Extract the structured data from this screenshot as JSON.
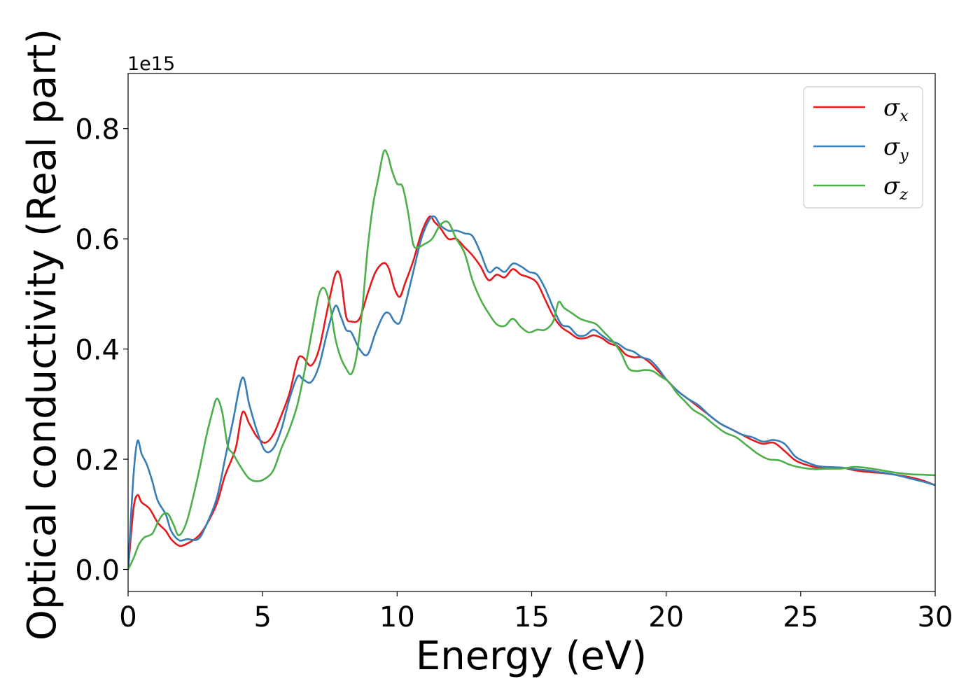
{
  "chart_data": {
    "type": "line",
    "xlabel": "Energy (eV)",
    "ylabel": "Optical conductivity (Real part)",
    "y_offset_label": "1e15",
    "xlim": [
      0,
      30
    ],
    "ylim": [
      -0.04,
      0.9
    ],
    "xticks": [
      0,
      5,
      10,
      15,
      20,
      25,
      30
    ],
    "xtick_labels": [
      "0",
      "5",
      "10",
      "15",
      "20",
      "25",
      "30"
    ],
    "yticks": [
      0.0,
      0.2,
      0.4,
      0.6,
      0.8
    ],
    "ytick_labels": [
      "0.0",
      "0.2",
      "0.4",
      "0.6",
      "0.8"
    ],
    "grid": false,
    "legend_position": "top-right",
    "series": [
      {
        "name": "σ_x",
        "legend_base": "σ",
        "legend_sub": "x",
        "color": "#e41a1c",
        "x": [
          0,
          0.2,
          0.35,
          0.5,
          0.8,
          1.1,
          1.4,
          1.6,
          1.9,
          2.2,
          2.6,
          2.9,
          3.3,
          3.6,
          4.0,
          4.25,
          4.5,
          4.8,
          5.1,
          5.4,
          5.7,
          6.0,
          6.3,
          6.5,
          6.8,
          7.1,
          7.4,
          7.7,
          7.9,
          8.1,
          8.3,
          8.6,
          8.9,
          9.2,
          9.5,
          9.7,
          9.9,
          10.1,
          10.3,
          10.6,
          10.9,
          11.2,
          11.4,
          11.6,
          11.9,
          12.2,
          12.5,
          12.8,
          13.1,
          13.4,
          13.7,
          14.0,
          14.3,
          14.6,
          14.9,
          15.2,
          15.5,
          15.8,
          16.1,
          16.4,
          16.7,
          17.0,
          17.3,
          17.6,
          17.9,
          18.2,
          18.5,
          18.8,
          19.1,
          19.4,
          19.7,
          20.0,
          20.4,
          20.8,
          21.2,
          21.6,
          22.0,
          22.4,
          22.8,
          23.2,
          23.6,
          24.0,
          24.4,
          24.8,
          25.2,
          25.6,
          26.0,
          26.5,
          27.0,
          27.5,
          28.0,
          28.5,
          29.0,
          29.5,
          30.0
        ],
        "y": [
          0,
          0.11,
          0.135,
          0.122,
          0.11,
          0.085,
          0.07,
          0.055,
          0.043,
          0.047,
          0.06,
          0.08,
          0.12,
          0.17,
          0.22,
          0.285,
          0.265,
          0.24,
          0.23,
          0.245,
          0.28,
          0.32,
          0.38,
          0.385,
          0.37,
          0.4,
          0.47,
          0.535,
          0.53,
          0.46,
          0.45,
          0.455,
          0.5,
          0.54,
          0.556,
          0.545,
          0.51,
          0.495,
          0.52,
          0.56,
          0.61,
          0.64,
          0.63,
          0.62,
          0.6,
          0.6,
          0.585,
          0.57,
          0.55,
          0.525,
          0.535,
          0.53,
          0.545,
          0.535,
          0.53,
          0.52,
          0.49,
          0.46,
          0.44,
          0.43,
          0.42,
          0.42,
          0.425,
          0.42,
          0.41,
          0.405,
          0.39,
          0.385,
          0.385,
          0.375,
          0.36,
          0.345,
          0.325,
          0.31,
          0.295,
          0.28,
          0.265,
          0.255,
          0.245,
          0.235,
          0.228,
          0.23,
          0.215,
          0.198,
          0.19,
          0.185,
          0.183,
          0.185,
          0.18,
          0.177,
          0.175,
          0.172,
          0.168,
          0.162,
          0.153
        ]
      },
      {
        "name": "σ_y",
        "legend_base": "σ",
        "legend_sub": "y",
        "color": "#377eb8",
        "x": [
          0,
          0.2,
          0.35,
          0.5,
          0.7,
          0.9,
          1.1,
          1.4,
          1.6,
          1.9,
          2.2,
          2.6,
          2.9,
          3.3,
          3.6,
          3.9,
          4.25,
          4.5,
          4.8,
          5.1,
          5.4,
          5.7,
          6.0,
          6.3,
          6.5,
          6.8,
          7.1,
          7.4,
          7.7,
          7.9,
          8.1,
          8.3,
          8.6,
          8.9,
          9.2,
          9.5,
          9.7,
          9.9,
          10.1,
          10.3,
          10.6,
          10.9,
          11.2,
          11.4,
          11.6,
          11.9,
          12.2,
          12.5,
          12.8,
          13.1,
          13.4,
          13.7,
          14.0,
          14.3,
          14.6,
          14.9,
          15.2,
          15.5,
          15.8,
          16.1,
          16.4,
          16.7,
          17.0,
          17.3,
          17.6,
          17.9,
          18.2,
          18.5,
          18.8,
          19.1,
          19.4,
          19.7,
          20.0,
          20.4,
          20.8,
          21.2,
          21.6,
          22.0,
          22.4,
          22.8,
          23.2,
          23.6,
          24.0,
          24.4,
          24.8,
          25.2,
          25.6,
          26.0,
          26.5,
          27.0,
          27.5,
          28.0,
          28.5,
          29.0,
          29.5,
          30.0
        ],
        "y": [
          0,
          0.17,
          0.233,
          0.21,
          0.19,
          0.16,
          0.125,
          0.1,
          0.07,
          0.053,
          0.055,
          0.055,
          0.08,
          0.13,
          0.2,
          0.27,
          0.348,
          0.3,
          0.25,
          0.215,
          0.22,
          0.255,
          0.31,
          0.35,
          0.345,
          0.34,
          0.37,
          0.43,
          0.478,
          0.46,
          0.435,
          0.43,
          0.4,
          0.39,
          0.43,
          0.462,
          0.465,
          0.45,
          0.448,
          0.48,
          0.54,
          0.6,
          0.635,
          0.64,
          0.625,
          0.615,
          0.615,
          0.61,
          0.605,
          0.575,
          0.54,
          0.548,
          0.54,
          0.555,
          0.55,
          0.54,
          0.535,
          0.51,
          0.475,
          0.445,
          0.44,
          0.425,
          0.425,
          0.435,
          0.425,
          0.415,
          0.41,
          0.4,
          0.395,
          0.385,
          0.38,
          0.365,
          0.345,
          0.325,
          0.31,
          0.298,
          0.28,
          0.265,
          0.255,
          0.245,
          0.24,
          0.232,
          0.235,
          0.228,
          0.205,
          0.195,
          0.188,
          0.186,
          0.185,
          0.182,
          0.18,
          0.176,
          0.172,
          0.166,
          0.16,
          0.153
        ]
      },
      {
        "name": "σ_z",
        "legend_base": "σ",
        "legend_sub": "z",
        "color": "#4daf4a",
        "x": [
          0,
          0.2,
          0.4,
          0.6,
          0.9,
          1.1,
          1.3,
          1.5,
          1.7,
          1.9,
          2.2,
          2.6,
          2.9,
          3.1,
          3.3,
          3.5,
          3.7,
          3.9,
          4.2,
          4.5,
          4.8,
          5.1,
          5.4,
          5.7,
          6.0,
          6.3,
          6.6,
          6.9,
          7.1,
          7.3,
          7.5,
          7.7,
          7.9,
          8.1,
          8.3,
          8.5,
          8.7,
          8.9,
          9.1,
          9.3,
          9.5,
          9.65,
          9.8,
          10.0,
          10.2,
          10.4,
          10.6,
          10.8,
          11.0,
          11.3,
          11.6,
          11.9,
          12.2,
          12.5,
          12.8,
          13.1,
          13.4,
          13.7,
          14.0,
          14.3,
          14.6,
          14.9,
          15.2,
          15.5,
          15.8,
          16.0,
          16.2,
          16.5,
          16.8,
          17.1,
          17.4,
          17.7,
          18.0,
          18.3,
          18.6,
          18.9,
          19.2,
          19.5,
          19.8,
          20.1,
          20.4,
          20.7,
          21.0,
          21.4,
          21.8,
          22.2,
          22.6,
          23.0,
          23.4,
          23.8,
          24.2,
          24.6,
          25.0,
          25.5,
          26.0,
          26.5,
          27.0,
          27.5,
          28.0,
          28.5,
          29.0,
          29.5,
          30.0
        ],
        "y": [
          0,
          0.02,
          0.045,
          0.058,
          0.065,
          0.085,
          0.1,
          0.1,
          0.08,
          0.062,
          0.09,
          0.17,
          0.24,
          0.28,
          0.31,
          0.285,
          0.225,
          0.21,
          0.185,
          0.165,
          0.16,
          0.165,
          0.18,
          0.22,
          0.255,
          0.3,
          0.37,
          0.45,
          0.5,
          0.51,
          0.48,
          0.42,
          0.385,
          0.365,
          0.355,
          0.39,
          0.47,
          0.58,
          0.66,
          0.71,
          0.758,
          0.752,
          0.725,
          0.7,
          0.695,
          0.65,
          0.59,
          0.585,
          0.59,
          0.6,
          0.625,
          0.63,
          0.6,
          0.575,
          0.525,
          0.49,
          0.465,
          0.445,
          0.442,
          0.455,
          0.44,
          0.43,
          0.435,
          0.435,
          0.45,
          0.485,
          0.475,
          0.465,
          0.455,
          0.45,
          0.445,
          0.43,
          0.415,
          0.395,
          0.365,
          0.36,
          0.362,
          0.36,
          0.35,
          0.34,
          0.32,
          0.305,
          0.29,
          0.278,
          0.262,
          0.248,
          0.24,
          0.225,
          0.21,
          0.2,
          0.198,
          0.19,
          0.185,
          0.182,
          0.183,
          0.183,
          0.186,
          0.184,
          0.18,
          0.176,
          0.173,
          0.172,
          0.171
        ]
      }
    ]
  }
}
